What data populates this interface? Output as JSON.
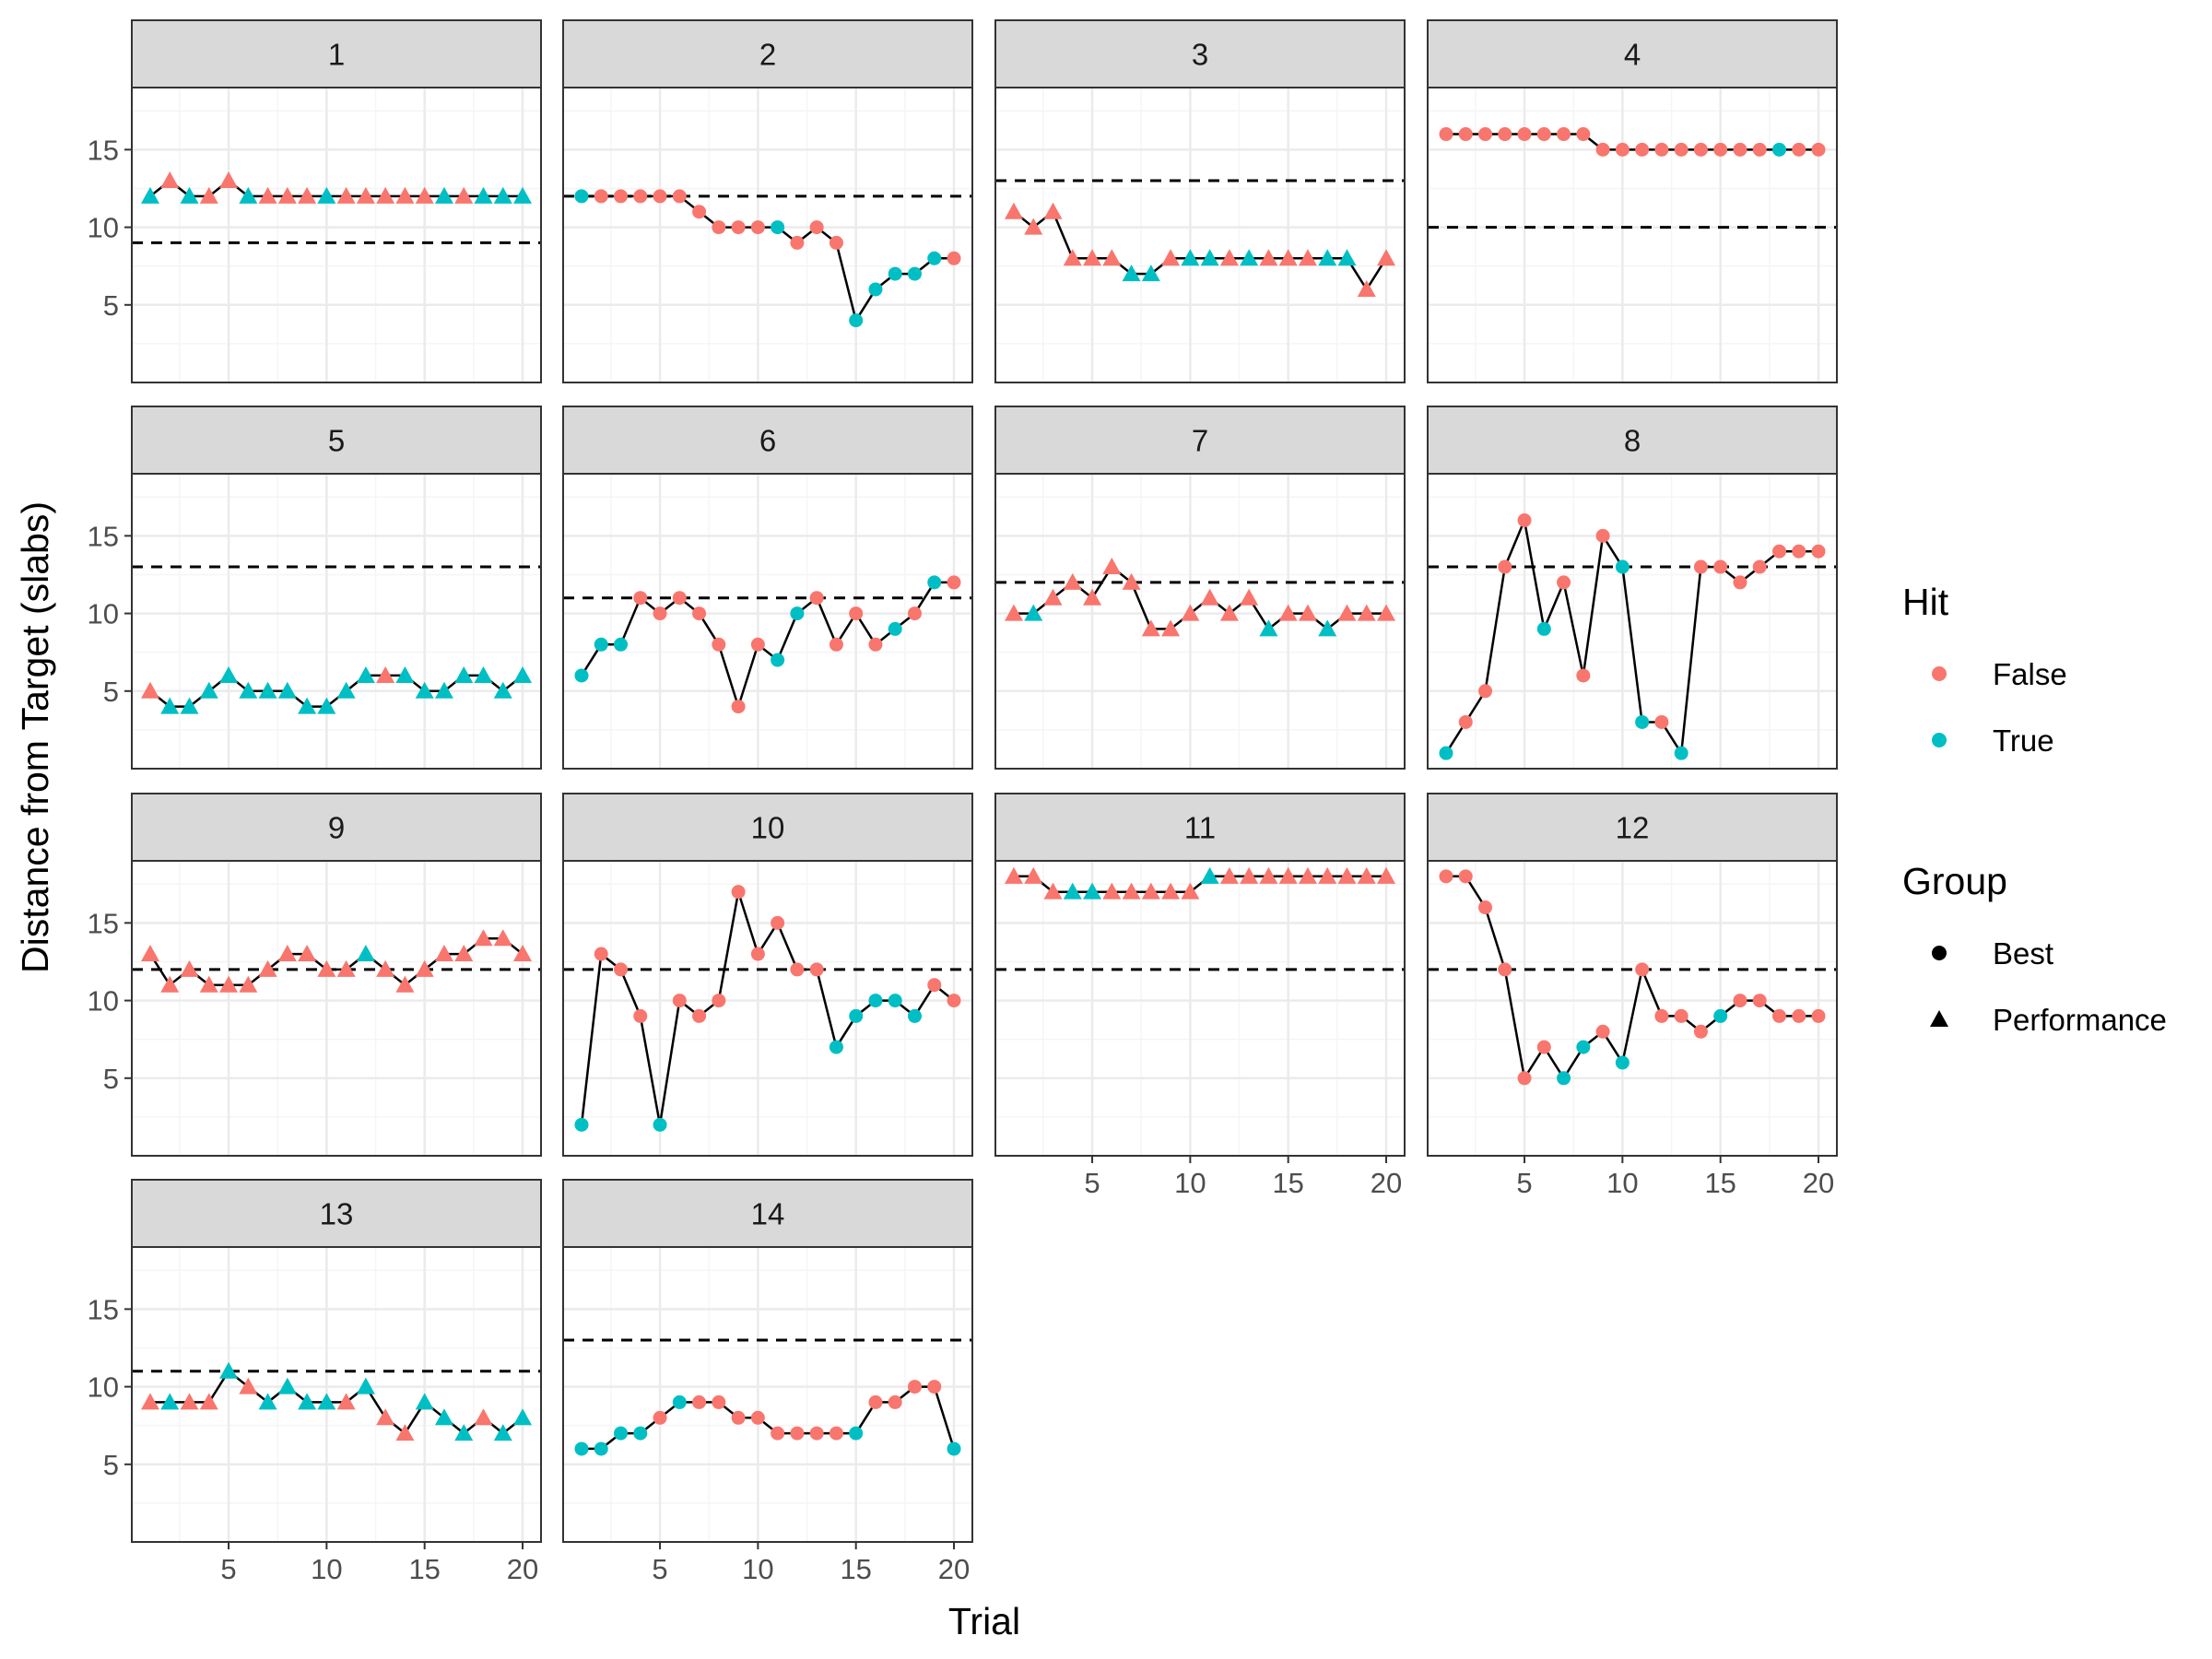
{
  "chart_data": {
    "type": "line",
    "facet_labels": [
      "1",
      "2",
      "3",
      "4",
      "5",
      "6",
      "7",
      "8",
      "9",
      "10",
      "11",
      "12",
      "13",
      "14"
    ],
    "xlabel": "Trial",
    "ylabel": "Distance from Target (slabs)",
    "xlim": [
      1,
      20
    ],
    "ylim": [
      0,
      19
    ],
    "x_ticks": [
      5,
      10,
      15,
      20
    ],
    "y_ticks": [
      5,
      10,
      15
    ],
    "grid": true,
    "legend": {
      "position": "right",
      "hit": {
        "title": "Hit",
        "items": [
          {
            "label": "False",
            "color": "#F8766D"
          },
          {
            "label": "True",
            "color": "#00BFC4"
          }
        ]
      },
      "group": {
        "title": "Group",
        "items": [
          {
            "label": "Best",
            "shape": "circle"
          },
          {
            "label": "Performance",
            "shape": "triangle"
          }
        ]
      }
    },
    "series": [
      {
        "name": "1",
        "group": "Performance",
        "target": 9,
        "values": [
          12,
          13,
          12,
          12,
          13,
          12,
          12,
          12,
          12,
          12,
          12,
          12,
          12,
          12,
          12,
          12,
          12,
          12,
          12,
          12
        ],
        "hit": [
          1,
          0,
          1,
          0,
          0,
          1,
          0,
          0,
          0,
          1,
          0,
          0,
          0,
          0,
          0,
          1,
          0,
          1,
          1,
          1
        ]
      },
      {
        "name": "2",
        "group": "Best",
        "target": 12,
        "values": [
          12,
          12,
          12,
          12,
          12,
          12,
          11,
          10,
          10,
          10,
          10,
          9,
          10,
          9,
          4,
          6,
          7,
          7,
          8,
          8
        ],
        "hit": [
          1,
          0,
          0,
          0,
          0,
          0,
          0,
          0,
          0,
          0,
          1,
          0,
          0,
          0,
          1,
          1,
          1,
          1,
          1,
          0
        ]
      },
      {
        "name": "3",
        "group": "Performance",
        "target": 13,
        "values": [
          11,
          10,
          11,
          8,
          8,
          8,
          7,
          7,
          8,
          8,
          8,
          8,
          8,
          8,
          8,
          8,
          8,
          8,
          6,
          8
        ],
        "hit": [
          0,
          0,
          0,
          0,
          0,
          0,
          1,
          1,
          0,
          1,
          1,
          0,
          1,
          0,
          0,
          0,
          1,
          1,
          0,
          0
        ]
      },
      {
        "name": "4",
        "group": "Best",
        "target": 10,
        "values": [
          16,
          16,
          16,
          16,
          16,
          16,
          16,
          16,
          15,
          15,
          15,
          15,
          15,
          15,
          15,
          15,
          15,
          15,
          15,
          15
        ],
        "hit": [
          0,
          0,
          0,
          0,
          0,
          0,
          0,
          0,
          0,
          0,
          0,
          0,
          0,
          0,
          0,
          0,
          0,
          1,
          0,
          0
        ]
      },
      {
        "name": "5",
        "group": "Performance",
        "target": 13,
        "values": [
          5,
          4,
          4,
          5,
          6,
          5,
          5,
          5,
          4,
          4,
          5,
          6,
          6,
          6,
          5,
          5,
          6,
          6,
          5,
          6
        ],
        "hit": [
          0,
          1,
          1,
          1,
          1,
          1,
          1,
          1,
          1,
          1,
          1,
          1,
          0,
          1,
          1,
          1,
          1,
          1,
          1,
          1
        ]
      },
      {
        "name": "6",
        "group": "Best",
        "target": 11,
        "values": [
          6,
          8,
          8,
          11,
          10,
          11,
          10,
          8,
          4,
          8,
          7,
          10,
          11,
          8,
          10,
          8,
          9,
          10,
          12,
          12
        ],
        "hit": [
          1,
          1,
          1,
          0,
          0,
          0,
          0,
          0,
          0,
          0,
          1,
          1,
          0,
          0,
          0,
          0,
          1,
          0,
          1,
          0
        ]
      },
      {
        "name": "7",
        "group": "Performance",
        "target": 12,
        "values": [
          10,
          10,
          11,
          12,
          11,
          13,
          12,
          9,
          9,
          10,
          11,
          10,
          11,
          9,
          10,
          10,
          9,
          10,
          10,
          10
        ],
        "hit": [
          0,
          1,
          0,
          0,
          0,
          0,
          0,
          0,
          0,
          0,
          0,
          0,
          0,
          1,
          0,
          0,
          1,
          0,
          0,
          0
        ]
      },
      {
        "name": "8",
        "group": "Best",
        "target": 13,
        "values": [
          1,
          3,
          5,
          13,
          16,
          9,
          12,
          6,
          15,
          13,
          3,
          3,
          1,
          13,
          13,
          12,
          13,
          14,
          14,
          14
        ],
        "hit": [
          1,
          0,
          0,
          0,
          0,
          1,
          0,
          0,
          0,
          1,
          1,
          0,
          1,
          0,
          0,
          0,
          0,
          0,
          0,
          0
        ]
      },
      {
        "name": "9",
        "group": "Performance",
        "target": 12,
        "values": [
          13,
          11,
          12,
          11,
          11,
          11,
          12,
          13,
          13,
          12,
          12,
          13,
          12,
          11,
          12,
          13,
          13,
          14,
          14,
          13
        ],
        "hit": [
          0,
          0,
          0,
          0,
          0,
          0,
          0,
          0,
          0,
          0,
          0,
          1,
          0,
          0,
          0,
          0,
          0,
          0,
          0,
          0
        ]
      },
      {
        "name": "10",
        "group": "Best",
        "target": 12,
        "values": [
          2,
          13,
          12,
          9,
          2,
          10,
          9,
          10,
          17,
          13,
          15,
          12,
          12,
          7,
          9,
          10,
          10,
          9,
          11,
          10
        ],
        "hit": [
          1,
          0,
          0,
          0,
          1,
          0,
          0,
          0,
          0,
          0,
          0,
          0,
          0,
          1,
          1,
          1,
          1,
          1,
          0,
          0
        ]
      },
      {
        "name": "11",
        "group": "Performance",
        "target": 12,
        "values": [
          18,
          18,
          17,
          17,
          17,
          17,
          17,
          17,
          17,
          17,
          18,
          18,
          18,
          18,
          18,
          18,
          18,
          18,
          18,
          18
        ],
        "hit": [
          0,
          0,
          0,
          1,
          1,
          0,
          0,
          0,
          0,
          0,
          1,
          0,
          0,
          0,
          0,
          0,
          0,
          0,
          0,
          0
        ]
      },
      {
        "name": "12",
        "group": "Best",
        "target": 12,
        "values": [
          18,
          18,
          16,
          12,
          5,
          7,
          5,
          7,
          8,
          6,
          12,
          9,
          9,
          8,
          9,
          10,
          10,
          9,
          9,
          9
        ],
        "hit": [
          0,
          0,
          0,
          0,
          0,
          0,
          1,
          1,
          0,
          1,
          0,
          0,
          0,
          0,
          1,
          0,
          0,
          0,
          0,
          0
        ]
      },
      {
        "name": "13",
        "group": "Performance",
        "target": 11,
        "values": [
          9,
          9,
          9,
          9,
          11,
          10,
          9,
          10,
          9,
          9,
          9,
          10,
          8,
          7,
          9,
          8,
          7,
          8,
          7,
          8
        ],
        "hit": [
          0,
          1,
          0,
          0,
          1,
          0,
          1,
          1,
          1,
          1,
          0,
          1,
          0,
          0,
          1,
          1,
          1,
          0,
          1,
          1
        ]
      },
      {
        "name": "14",
        "group": "Best",
        "target": 13,
        "values": [
          6,
          6,
          7,
          7,
          8,
          9,
          9,
          9,
          8,
          8,
          7,
          7,
          7,
          7,
          7,
          9,
          9,
          10,
          10,
          6
        ],
        "hit": [
          1,
          1,
          1,
          1,
          0,
          1,
          0,
          0,
          0,
          0,
          0,
          0,
          0,
          0,
          1,
          0,
          0,
          0,
          0,
          1
        ]
      }
    ]
  },
  "colors": {
    "false": "#F8766D",
    "true": "#00BFC4",
    "strip_bg": "#D9D9D9",
    "border": "#333333",
    "grid_major": "#EBEBEB",
    "grid_minor": "#F5F5F5"
  }
}
